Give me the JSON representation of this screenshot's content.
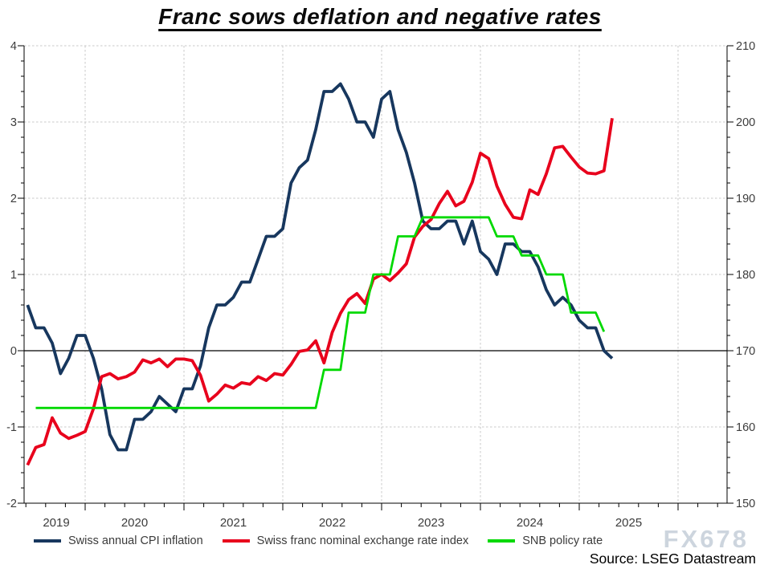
{
  "title": "Franc sows deflation and negative rates",
  "watermark": "FX678",
  "source_label": "Source: LSEG Datastream",
  "colors": {
    "cpi_line": "#17375e",
    "fx_line": "#e8001c",
    "policy_line": "#00d900",
    "grid": "#c8c8c8",
    "axis": "#000000",
    "watermark": "#cdd5de"
  },
  "chart_data": {
    "type": "line",
    "frequency": "monthly",
    "x_months": [
      "2019-06",
      "2019-07",
      "2019-08",
      "2019-09",
      "2019-10",
      "2019-11",
      "2019-12",
      "2020-01",
      "2020-02",
      "2020-03",
      "2020-04",
      "2020-05",
      "2020-06",
      "2020-07",
      "2020-08",
      "2020-09",
      "2020-10",
      "2020-11",
      "2020-12",
      "2021-01",
      "2021-02",
      "2021-03",
      "2021-04",
      "2021-05",
      "2021-06",
      "2021-07",
      "2021-08",
      "2021-09",
      "2021-10",
      "2021-11",
      "2021-12",
      "2022-01",
      "2022-02",
      "2022-03",
      "2022-04",
      "2022-05",
      "2022-06",
      "2022-07",
      "2022-08",
      "2022-09",
      "2022-10",
      "2022-11",
      "2022-12",
      "2023-01",
      "2023-02",
      "2023-03",
      "2023-04",
      "2023-05",
      "2023-06",
      "2023-07",
      "2023-08",
      "2023-09",
      "2023-10",
      "2023-11",
      "2023-12",
      "2024-01",
      "2024-02",
      "2024-03",
      "2024-04",
      "2024-05",
      "2024-06",
      "2024-07",
      "2024-08",
      "2024-09",
      "2024-10",
      "2024-11",
      "2024-12",
      "2025-01",
      "2025-02",
      "2025-03",
      "2025-04",
      "2025-05"
    ],
    "series": [
      {
        "id": "cpi",
        "name": "Swiss annual CPI inflation",
        "axis": "left",
        "color": "#17375e",
        "start_month": "2019-06",
        "values": [
          0.6,
          0.3,
          0.3,
          0.1,
          -0.3,
          -0.1,
          0.2,
          0.2,
          -0.1,
          -0.5,
          -1.1,
          -1.3,
          -1.3,
          -0.9,
          -0.9,
          -0.8,
          -0.6,
          -0.7,
          -0.8,
          -0.5,
          -0.5,
          -0.2,
          0.3,
          0.6,
          0.6,
          0.7,
          0.9,
          0.9,
          1.2,
          1.5,
          1.5,
          1.6,
          2.2,
          2.4,
          2.5,
          2.9,
          3.4,
          3.4,
          3.5,
          3.3,
          3.0,
          3.0,
          2.8,
          3.3,
          3.4,
          2.9,
          2.6,
          2.2,
          1.7,
          1.6,
          1.6,
          1.7,
          1.7,
          1.4,
          1.7,
          1.3,
          1.2,
          1.0,
          1.4,
          1.4,
          1.3,
          1.3,
          1.1,
          0.8,
          0.6,
          0.7,
          0.6,
          0.4,
          0.3,
          0.3,
          0.0,
          -0.1
        ]
      },
      {
        "id": "fx",
        "name": "Swiss franc nominal exchange rate index",
        "axis": "right",
        "color": "#e8001c",
        "start_month": "2019-06",
        "values": [
          155.0,
          157.3,
          157.7,
          161.2,
          159.2,
          158.5,
          158.9,
          159.4,
          162.4,
          166.6,
          167.0,
          166.3,
          166.6,
          167.2,
          168.8,
          168.4,
          168.9,
          167.9,
          168.9,
          168.9,
          168.7,
          166.8,
          163.4,
          164.3,
          165.5,
          165.1,
          165.8,
          165.6,
          166.6,
          166.1,
          167.0,
          166.8,
          168.2,
          169.9,
          170.1,
          171.3,
          168.4,
          172.4,
          174.9,
          176.7,
          177.5,
          176.2,
          179.4,
          180.0,
          179.2,
          180.2,
          181.4,
          184.9,
          186.3,
          187.2,
          189.3,
          190.9,
          189.0,
          189.6,
          192.1,
          195.9,
          195.2,
          191.6,
          189.2,
          187.5,
          187.3,
          191.1,
          190.5,
          193.2,
          196.6,
          196.8,
          195.4,
          194.1,
          193.3,
          193.2,
          193.6,
          200.5
        ]
      },
      {
        "id": "policy",
        "name": "SNB policy rate",
        "axis": "left",
        "color": "#00d900",
        "start_month": "2019-07",
        "values": [
          -0.75,
          -0.75,
          -0.75,
          -0.75,
          -0.75,
          -0.75,
          -0.75,
          -0.75,
          -0.75,
          -0.75,
          -0.75,
          -0.75,
          -0.75,
          -0.75,
          -0.75,
          -0.75,
          -0.75,
          -0.75,
          -0.75,
          -0.75,
          -0.75,
          -0.75,
          -0.75,
          -0.75,
          -0.75,
          -0.75,
          -0.75,
          -0.75,
          -0.75,
          -0.75,
          -0.75,
          -0.75,
          -0.75,
          -0.75,
          -0.75,
          -0.25,
          -0.25,
          -0.25,
          0.5,
          0.5,
          0.5,
          1.0,
          1.0,
          1.0,
          1.5,
          1.5,
          1.5,
          1.75,
          1.75,
          1.75,
          1.75,
          1.75,
          1.75,
          1.75,
          1.75,
          1.75,
          1.5,
          1.5,
          1.5,
          1.25,
          1.25,
          1.25,
          1.0,
          1.0,
          1.0,
          0.5,
          0.5,
          0.5,
          0.5,
          0.25
        ]
      }
    ],
    "left_axis": {
      "range": [
        -2,
        4
      ],
      "ticks": [
        "4",
        "3",
        "2",
        "1",
        "0",
        "-1",
        "-2"
      ],
      "minor_step": 0.2
    },
    "right_axis": {
      "range": [
        150,
        210
      ],
      "ticks": [
        "210",
        "200",
        "190",
        "180",
        "170",
        "160",
        "150"
      ],
      "minor_step": 2
    },
    "x_axis": {
      "year_labels": [
        "2019",
        "2020",
        "2021",
        "2022",
        "2023",
        "2024",
        "2025"
      ]
    },
    "grid": {
      "horizontal_dashed_at": [
        4,
        3,
        2,
        1,
        -1
      ],
      "vertical_dashed_at_january_of": [
        "2020",
        "2021",
        "2022",
        "2023",
        "2024",
        "2025",
        "2026"
      ],
      "zero_line_at": 0
    },
    "legend_position": "bottom-left"
  }
}
